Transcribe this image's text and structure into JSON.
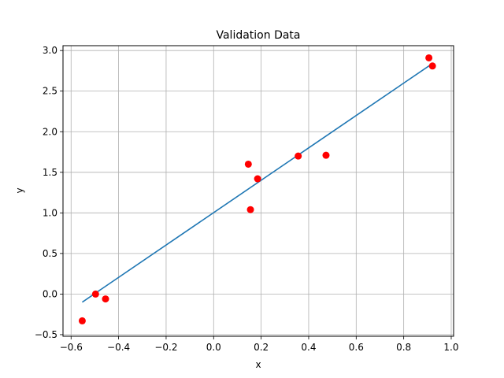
{
  "chart_data": {
    "type": "scatter",
    "title": "Validation Data",
    "xlabel": "x",
    "ylabel": "y",
    "xlim": [
      -0.634,
      1.01
    ],
    "ylim": [
      -0.52,
      3.06
    ],
    "grid": true,
    "xticks": [
      -0.6,
      -0.4,
      -0.2,
      0.0,
      0.2,
      0.4,
      0.6,
      0.8,
      1.0
    ],
    "xtick_labels": [
      "−0.6",
      "−0.4",
      "−0.2",
      "0.0",
      "0.2",
      "0.4",
      "0.6",
      "0.8",
      "1.0"
    ],
    "yticks": [
      -0.5,
      0.0,
      0.5,
      1.0,
      1.5,
      2.0,
      2.5,
      3.0
    ],
    "ytick_labels": [
      "−0.5",
      "0.0",
      "0.5",
      "1.0",
      "1.5",
      "2.0",
      "2.5",
      "3.0"
    ],
    "points": {
      "color": "#ff0000",
      "x": [
        -0.553,
        -0.497,
        -0.455,
        0.146,
        0.155,
        0.185,
        0.356,
        0.473,
        0.906,
        0.921
      ],
      "y": [
        -0.33,
        0.0,
        -0.06,
        1.6,
        1.04,
        1.42,
        1.7,
        1.71,
        2.91,
        2.81
      ]
    },
    "fit_line": {
      "color": "#1f77b4",
      "x": [
        -0.553,
        0.921
      ],
      "y": [
        -0.1,
        2.84
      ]
    }
  }
}
